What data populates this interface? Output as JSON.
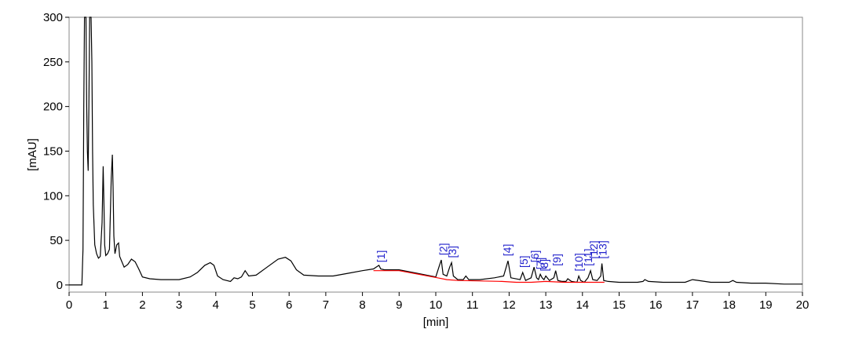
{
  "chart_data": {
    "type": "line",
    "title": "",
    "xlabel": "[min]",
    "ylabel": "[mAU]",
    "xlim": [
      0,
      20
    ],
    "ylim": [
      -8,
      300
    ],
    "x_ticks": [
      "0",
      "1",
      "2",
      "3",
      "4",
      "5",
      "6",
      "7",
      "8",
      "9",
      "10",
      "11",
      "12",
      "13",
      "14",
      "15",
      "16",
      "17",
      "18",
      "19",
      "20"
    ],
    "y_ticks": [
      "0",
      "50",
      "100",
      "150",
      "200",
      "250",
      "300"
    ],
    "grid": false,
    "colors": {
      "trace": "#000000",
      "baseline": "#ff0000",
      "peak_labels": "#2222cc"
    },
    "trace": {
      "x": [
        0,
        0.35,
        0.38,
        0.4,
        0.42,
        0.44,
        0.46,
        0.48,
        0.5,
        0.52,
        0.54,
        0.56,
        0.58,
        0.6,
        0.62,
        0.64,
        0.66,
        0.7,
        0.75,
        0.8,
        0.85,
        0.9,
        0.93,
        0.95,
        0.97,
        1.0,
        1.05,
        1.1,
        1.15,
        1.18,
        1.2,
        1.22,
        1.25,
        1.3,
        1.35,
        1.38,
        1.42,
        1.5,
        1.6,
        1.7,
        1.8,
        1.9,
        2.0,
        2.2,
        2.5,
        3.0,
        3.3,
        3.5,
        3.7,
        3.85,
        3.95,
        4.05,
        4.2,
        4.4,
        4.5,
        4.6,
        4.7,
        4.8,
        4.9,
        5.1,
        5.4,
        5.7,
        5.9,
        6.05,
        6.2,
        6.4,
        6.8,
        7.2,
        7.6,
        8.0,
        8.3,
        8.45,
        8.5,
        8.6,
        9.0,
        9.5,
        10.0,
        10.1,
        10.15,
        10.2,
        10.3,
        10.38,
        10.43,
        10.48,
        10.6,
        10.75,
        10.82,
        10.9,
        11.2,
        11.6,
        11.85,
        11.92,
        11.97,
        12.05,
        12.3,
        12.37,
        12.45,
        12.6,
        12.68,
        12.75,
        12.8,
        12.85,
        12.9,
        12.95,
        13.0,
        13.1,
        13.22,
        13.27,
        13.33,
        13.45,
        13.55,
        13.6,
        13.7,
        13.85,
        13.9,
        13.95,
        14.05,
        14.15,
        14.22,
        14.28,
        14.4,
        14.5,
        14.53,
        14.58,
        14.7,
        15.0,
        15.5,
        15.65,
        15.7,
        15.8,
        16.2,
        16.8,
        17.0,
        17.5,
        18.0,
        18.1,
        18.2,
        18.6,
        19.0,
        19.5,
        20.0
      ],
      "y": [
        0,
        0,
        40,
        200,
        300,
        300,
        300,
        200,
        150,
        128,
        200,
        300,
        300,
        300,
        250,
        150,
        90,
        45,
        35,
        30,
        32,
        70,
        133,
        90,
        45,
        33,
        35,
        40,
        120,
        146,
        110,
        55,
        35,
        45,
        47,
        32,
        28,
        20,
        23,
        29,
        26,
        18,
        9,
        7,
        6,
        6,
        9,
        14,
        22,
        25,
        22,
        10,
        6,
        4,
        8,
        7,
        9,
        16,
        10,
        11,
        20,
        29,
        31,
        27,
        17,
        11,
        10,
        10,
        13,
        16,
        18,
        22,
        18,
        17,
        17,
        13,
        9,
        22,
        28,
        12,
        10,
        20,
        25,
        10,
        6,
        6,
        10,
        6,
        6,
        8,
        10,
        20,
        27,
        8,
        6,
        14,
        5,
        8,
        20,
        8,
        6,
        12,
        8,
        6,
        10,
        5,
        8,
        16,
        5,
        4,
        4,
        7,
        4,
        3,
        10,
        5,
        3,
        8,
        16,
        6,
        5,
        10,
        24,
        5,
        4,
        3,
        3,
        4,
        6,
        4,
        3,
        3,
        6,
        3,
        3,
        5,
        3,
        2,
        2,
        1,
        1
      ]
    },
    "baseline": {
      "x": [
        8.3,
        9.0,
        10.05,
        10.3,
        10.6,
        11.8,
        12.2,
        12.6,
        13.0,
        13.5,
        14.0,
        14.4,
        14.6
      ],
      "y": [
        16,
        16,
        8,
        6,
        5,
        4,
        3,
        3,
        4,
        3,
        3,
        3,
        3
      ]
    },
    "peaks": [
      {
        "label": "[1]",
        "x": 8.5,
        "y": 20
      },
      {
        "label": "[2]",
        "x": 10.2,
        "y": 28
      },
      {
        "label": "[3]",
        "x": 10.45,
        "y": 25
      },
      {
        "label": "[4]",
        "x": 11.95,
        "y": 27
      },
      {
        "label": "[5]",
        "x": 12.4,
        "y": 14
      },
      {
        "label": "[6]",
        "x": 12.7,
        "y": 20
      },
      {
        "label": "[7]",
        "x": 12.85,
        "y": 12
      },
      {
        "label": "[8]",
        "x": 12.95,
        "y": 10
      },
      {
        "label": "[9]",
        "x": 13.3,
        "y": 16
      },
      {
        "label": "[10]",
        "x": 13.9,
        "y": 10
      },
      {
        "label": "[11]",
        "x": 14.15,
        "y": 16
      },
      {
        "label": "[12]",
        "x": 14.3,
        "y": 24
      },
      {
        "label": "[13]",
        "x": 14.55,
        "y": 24
      }
    ]
  }
}
